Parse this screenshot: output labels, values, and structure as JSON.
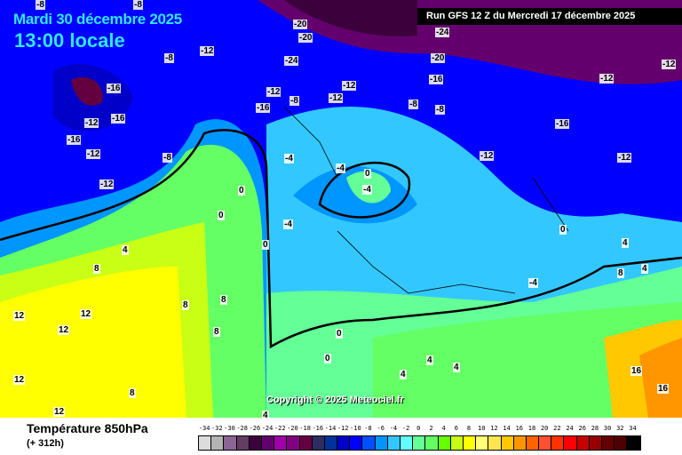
{
  "header": {
    "date": "Mardi 30 décembre 2025",
    "time": "13:00 locale",
    "run": "Run GFS 12 Z du Mercredi 17 décembre 2025"
  },
  "copyright": "Copyright © 2025 Meteociel.fr",
  "footer": {
    "parameter": "Température 850hPa",
    "step": "(+ 312h)"
  },
  "legend": {
    "labels": [
      "-34",
      "-32",
      "-30",
      "-28",
      "-26",
      "-24",
      "-22",
      "-20",
      "-18",
      "-16",
      "-14",
      "-12",
      "-10",
      "-8",
      "-6",
      "-4",
      "-2",
      "0",
      "2",
      "4",
      "6",
      "8",
      "10",
      "12",
      "14",
      "16",
      "18",
      "20",
      "22",
      "24",
      "26",
      "28",
      "30",
      "32",
      "34"
    ],
    "colors": [
      "#dcdcdc",
      "#b4b4b4",
      "#8c6496",
      "#643c64",
      "#3c003c",
      "#64006e",
      "#a000a8",
      "#820082",
      "#640040",
      "#2d2d64",
      "#00329b",
      "#0000c8",
      "#0000ff",
      "#0050ff",
      "#0096ff",
      "#32c8ff",
      "#64ffff",
      "#64ff96",
      "#64ff64",
      "#64ff00",
      "#c8ff14",
      "#ffff00",
      "#ffff78",
      "#ffe650",
      "#ffc800",
      "#ff9600",
      "#ff6400",
      "#ff5032",
      "#ff3200",
      "#ff0000",
      "#c80000",
      "#960000",
      "#640000",
      "#500000",
      "#000000"
    ]
  },
  "contour_labels": [
    "-8",
    "-8",
    "-12",
    "-16",
    "-16",
    "-12",
    "-16",
    "-12",
    "-12",
    "-8",
    "-20",
    "-20",
    "-24",
    "-20",
    "-16",
    "-24",
    "-12",
    "-12",
    "-16",
    "-12",
    "-8",
    "-12",
    "-8",
    "-8",
    "-8",
    "-16",
    "-12",
    "-12",
    "-12",
    "-4",
    "-4",
    "0",
    "-4",
    "-4",
    "0",
    "0",
    "0",
    "4",
    "8",
    "12",
    "12",
    "12",
    "12",
    "8",
    "8",
    "8",
    "4",
    "0",
    "0",
    "4",
    "4",
    "8",
    "12",
    "16",
    "16",
    "4",
    "-4",
    "0",
    "8",
    "4",
    "4"
  ]
}
